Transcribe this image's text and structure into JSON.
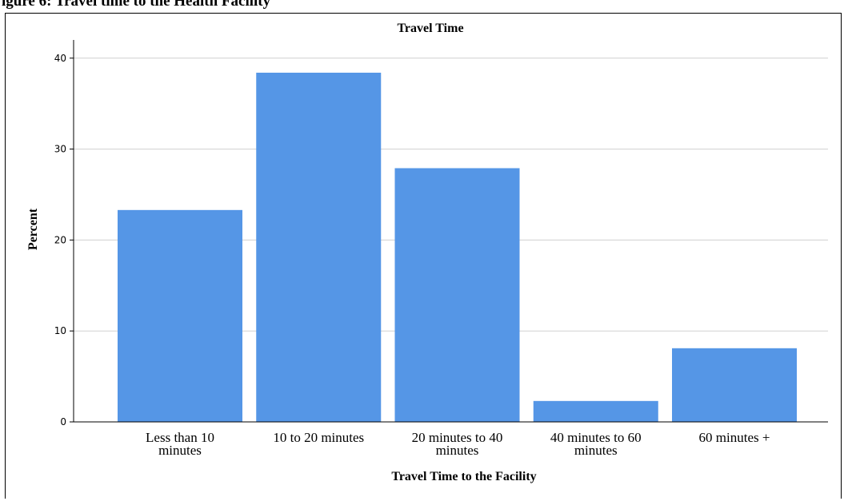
{
  "figure": {
    "caption_partial": "igure 6: Travel time to the Health Facility"
  },
  "chart_data": {
    "type": "bar",
    "title": "Travel Time",
    "xlabel": "Travel Time to the Facility",
    "ylabel": "Percent",
    "categories": [
      [
        "Less than 10",
        "minutes"
      ],
      [
        "10 to 20 minutes"
      ],
      [
        "20 minutes to 40",
        "minutes"
      ],
      [
        "40 minutes to 60",
        "minutes"
      ],
      [
        "60 minutes +"
      ]
    ],
    "values": [
      23.3,
      38.4,
      27.9,
      2.3,
      8.1
    ],
    "ylim": [
      0,
      42
    ],
    "yticks": [
      0,
      10,
      20,
      30,
      40
    ],
    "grid": true,
    "bar_color": "#5596e6"
  }
}
